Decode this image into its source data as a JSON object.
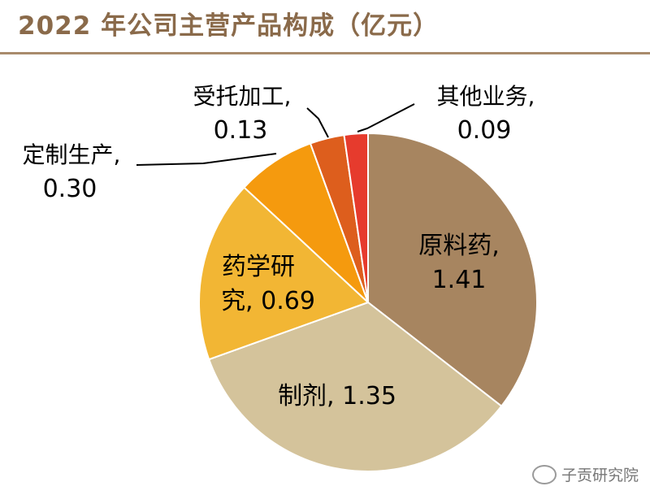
{
  "title": "2022 年公司主营产品构成（亿元）",
  "watermark": "子贡研究院",
  "chart_data": {
    "type": "pie",
    "title": "2022 年公司主营产品构成（亿元）",
    "slices": [
      {
        "name": "原料药",
        "value": 1.41,
        "color": "#a78560",
        "label_text": "原料药,",
        "value_text": "1.41"
      },
      {
        "name": "制剂",
        "value": 1.35,
        "color": "#d4c39b",
        "label_text": "制剂, 1.35"
      },
      {
        "name": "药学研究",
        "value": 0.69,
        "color": "#f2b634",
        "label_text": "药学研",
        "label_text2": "究, 0.69"
      },
      {
        "name": "定制生产",
        "value": 0.3,
        "color": "#f59a0e",
        "label_text": "定制生产,",
        "value_text": "0.30"
      },
      {
        "name": "受托加工",
        "value": 0.13,
        "color": "#dd5e1d",
        "label_text": "受托加工,",
        "value_text": "0.13"
      },
      {
        "name": "其他业务",
        "value": 0.09,
        "color": "#e63b2d",
        "label_text": "其他业务,",
        "value_text": "0.09"
      }
    ]
  }
}
